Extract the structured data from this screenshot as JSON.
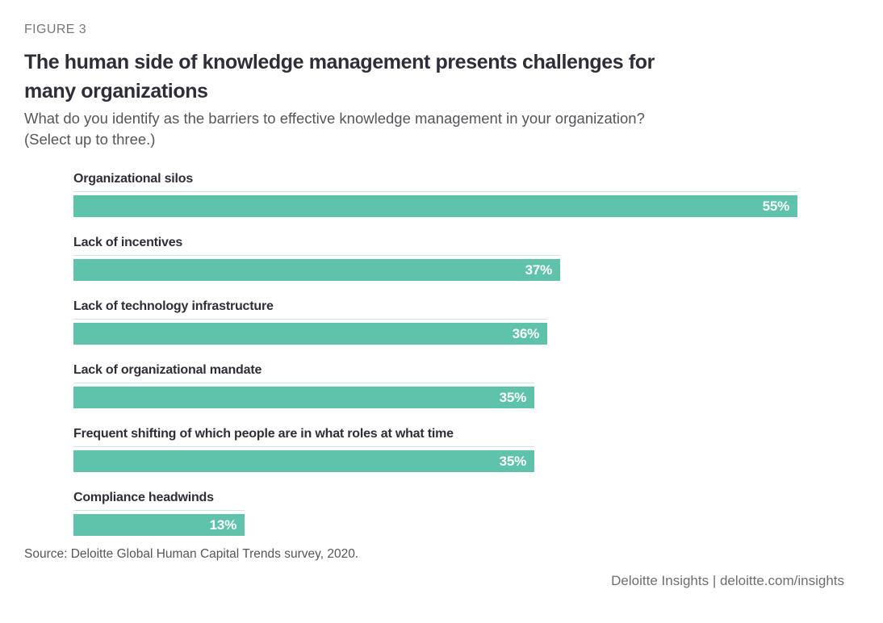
{
  "figure_label": "FIGURE 3",
  "title_lines": [
    "The human side of knowledge management presents challenges for",
    "many organizations"
  ],
  "subtitle_lines": [
    "What do you identify as the barriers to effective knowledge management in your organization?",
    "(Select up to three.)"
  ],
  "source": "Source: Deloitte Global Human Capital Trends survey, 2020.",
  "footer": {
    "text": "Deloitte Insights | deloitte.com/insights"
  },
  "colors": {
    "bar": "#5fc3ab",
    "track_line": "#c9e8de",
    "title": "#2e2e38",
    "subtitle": "#53565a",
    "figure_label": "#75787b",
    "value_label": "#ffffff"
  },
  "chart_data": {
    "type": "bar",
    "orientation": "horizontal",
    "title": "The human side of knowledge management presents challenges for many organizations",
    "subtitle": "What do you identify as the barriers to effective knowledge management in your organization? (Select up to three.)",
    "categories": [
      "Organizational silos",
      "Lack of incentives",
      "Lack of technology infrastructure",
      "Lack of organizational mandate",
      "Frequent shifting of which people are in what roles at what time",
      "Compliance headwinds"
    ],
    "values": [
      55,
      37,
      36,
      35,
      35,
      13
    ],
    "value_labels": [
      "55%",
      "37%",
      "36%",
      "35%",
      "35%",
      "13%"
    ],
    "xlabel": "",
    "ylabel": "",
    "xlim": [
      0,
      100
    ],
    "grid": false,
    "legend": "none",
    "value_label_position": "inside-end"
  }
}
